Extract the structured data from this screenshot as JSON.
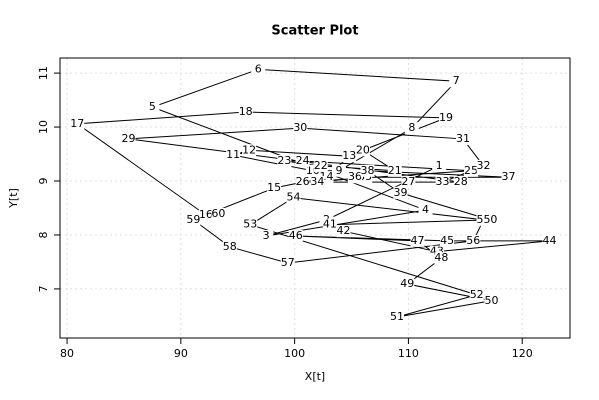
{
  "chart_data": {
    "type": "scatter",
    "title": "Scatter Plot",
    "x_label": "X[t]",
    "y_label": "Y[t]",
    "x": [
      112.7,
      102.8,
      97.5,
      111.5,
      87.5,
      96.8,
      114.2,
      110.3,
      103.9,
      101.6,
      94.6,
      96.0,
      104.8,
      102.8,
      98.2,
      92.2,
      80.9,
      95.7,
      113.3,
      106.0,
      108.8,
      102.3,
      99.1,
      100.7,
      115.5,
      100.7,
      110.0,
      114.6,
      85.4,
      100.5,
      114.8,
      116.6,
      113.0,
      102.0,
      106.2,
      105.3,
      118.8,
      106.4,
      109.3,
      117.2,
      103.1,
      104.3,
      112.5,
      122.4,
      113.4,
      100.1,
      110.8,
      112.9,
      109.9,
      117.3,
      109.0,
      116.0,
      96.1,
      99.9,
      116.6,
      115.7,
      99.4,
      94.3,
      91.1,
      93.3
    ],
    "values": [
      9.28,
      8.28,
      7.98,
      8.46,
      10.37,
      11.07,
      10.85,
      9.98,
      9.19,
      9.19,
      9.48,
      9.57,
      9.46,
      9.07,
      8.87,
      8.37,
      10.06,
      10.28,
      10.17,
      9.57,
      9.19,
      9.28,
      9.37,
      9.37,
      9.19,
      8.98,
      8.98,
      8.98,
      9.78,
      9.98,
      9.78,
      9.28,
      8.98,
      8.98,
      9.07,
      9.07,
      9.07,
      9.19,
      8.78,
      8.28,
      8.19,
      8.07,
      7.69,
      7.89,
      7.89,
      7.98,
      7.89,
      7.57,
      7.09,
      6.78,
      6.48,
      6.89,
      8.19,
      8.69,
      8.28,
      7.89,
      7.48,
      7.78,
      8.28,
      8.39
    ],
    "labels": [
      1,
      2,
      3,
      4,
      5,
      6,
      7,
      8,
      9,
      10,
      11,
      12,
      13,
      14,
      15,
      16,
      17,
      18,
      19,
      20,
      21,
      22,
      23,
      24,
      25,
      26,
      27,
      28,
      29,
      30,
      31,
      32,
      33,
      34,
      35,
      36,
      37,
      38,
      39,
      40,
      41,
      42,
      43,
      44,
      45,
      46,
      47,
      48,
      49,
      50,
      51,
      52,
      53,
      54,
      55,
      56,
      57,
      58,
      59,
      60
    ],
    "color": "#000000",
    "xlim": [
      79.38,
      124.2
    ],
    "ylim": [
      6.09,
      11.28
    ],
    "xticks": [
      80,
      90,
      100,
      110,
      120
    ],
    "yticks": [
      7,
      8,
      9,
      10,
      11
    ],
    "grid": true
  }
}
